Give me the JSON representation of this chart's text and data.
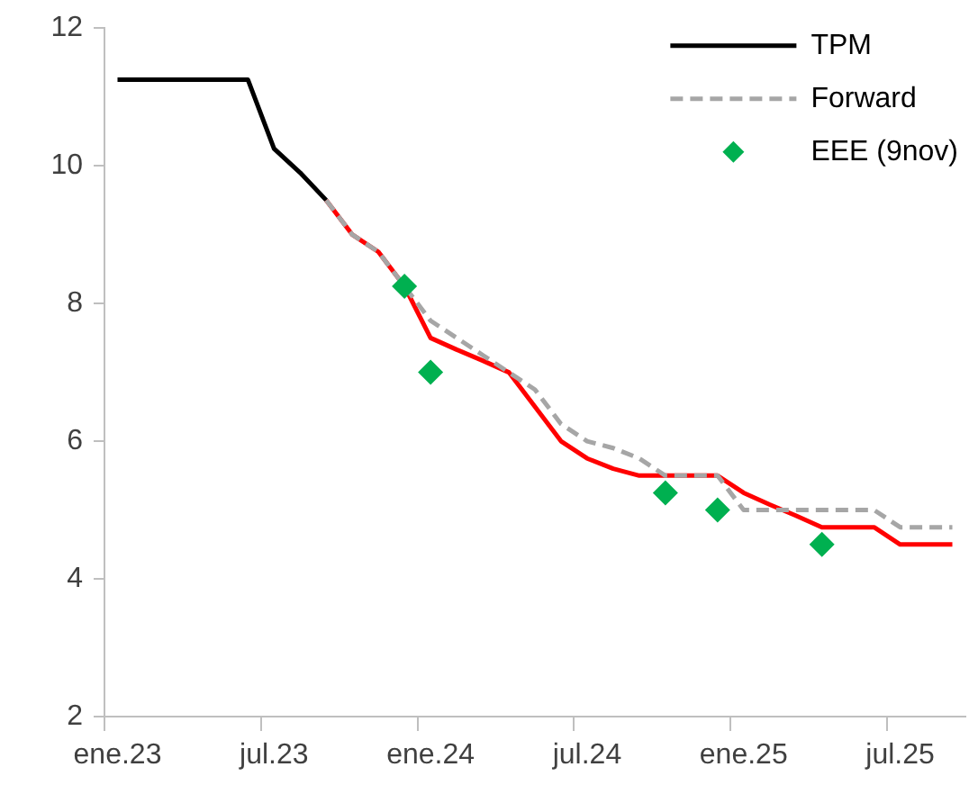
{
  "chart_data": {
    "type": "line",
    "categories": [
      "ene.23",
      null,
      null,
      null,
      null,
      null,
      "jul.23",
      null,
      null,
      null,
      null,
      null,
      "ene.24",
      null,
      null,
      null,
      null,
      null,
      "jul.24",
      null,
      null,
      null,
      null,
      null,
      "ene.25",
      null,
      null,
      null,
      null,
      null,
      "jul.25",
      null,
      null
    ],
    "series": [
      {
        "name": "TPM",
        "color": "#000000",
        "line_style": "solid",
        "values": [
          11.25,
          11.25,
          11.25,
          11.25,
          11.25,
          11.25,
          10.25,
          9.9,
          9.5,
          null,
          null,
          null,
          null,
          null,
          null,
          null,
          null,
          null,
          null,
          null,
          null,
          null,
          null,
          null,
          null,
          null,
          null,
          null,
          null,
          null,
          null,
          null,
          null
        ]
      },
      {
        "color": "#ff0000",
        "line_style": "solid",
        "values": [
          null,
          null,
          null,
          null,
          null,
          null,
          null,
          null,
          9.5,
          9.0,
          8.75,
          8.25,
          7.5,
          7.33,
          7.17,
          7.0,
          6.5,
          6.0,
          5.75,
          5.6,
          5.5,
          5.5,
          5.5,
          5.5,
          5.25,
          5.08,
          4.92,
          4.75,
          4.75,
          4.75,
          4.5,
          4.5,
          4.5
        ]
      },
      {
        "name": "Forward",
        "color": "#a6a6a6",
        "line_style": "dashed",
        "values": [
          null,
          null,
          null,
          null,
          null,
          null,
          null,
          null,
          9.5,
          9.0,
          8.75,
          8.25,
          7.75,
          7.5,
          7.25,
          7.0,
          6.75,
          6.25,
          6.0,
          5.9,
          5.75,
          5.5,
          5.5,
          5.5,
          5.0,
          5.0,
          5.0,
          5.0,
          5.0,
          5.0,
          4.75,
          4.75,
          4.75
        ]
      },
      {
        "name": "EEE (9nov)",
        "type": "scatter",
        "marker": "diamond",
        "color": "#00b050",
        "values": [
          null,
          null,
          null,
          null,
          null,
          null,
          null,
          null,
          null,
          null,
          null,
          8.25,
          7.0,
          null,
          null,
          null,
          null,
          null,
          null,
          null,
          null,
          5.25,
          null,
          5.0,
          null,
          null,
          null,
          4.5,
          null,
          null,
          null,
          null,
          null
        ]
      }
    ],
    "ylim": [
      2,
      12
    ],
    "yticks": [
      2,
      4,
      6,
      8,
      10,
      12
    ],
    "grid": false,
    "legend": "top right"
  }
}
